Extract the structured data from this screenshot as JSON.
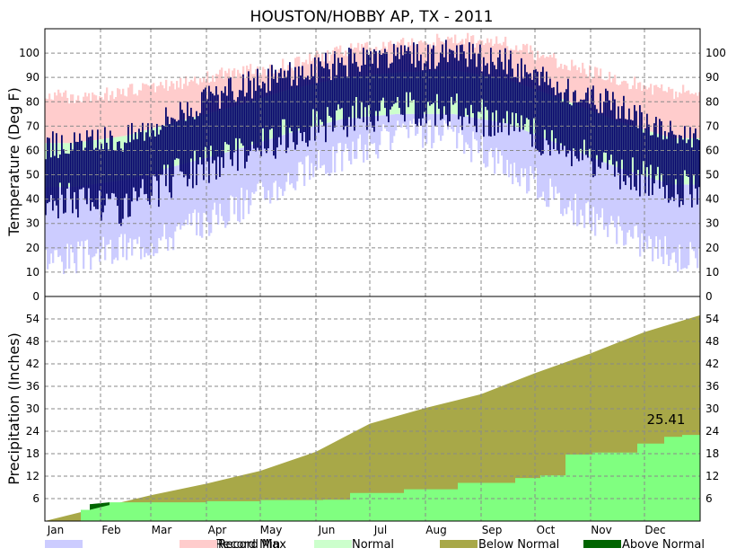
{
  "chart_data": [
    {
      "type": "bar",
      "title": "HOUSTON/HOBBY AP, TX - 2011",
      "ylabel": "Temperature (Deg F)",
      "ylim": [
        0,
        110
      ],
      "yticks": [
        0,
        10,
        20,
        30,
        40,
        50,
        60,
        70,
        80,
        90,
        100
      ],
      "months": [
        "Jan",
        "Feb",
        "Mar",
        "Apr",
        "May",
        "Jun",
        "Jul",
        "Aug",
        "Sep",
        "Oct",
        "Nov",
        "Dec"
      ],
      "legend": [
        {
          "label": "Record Min",
          "color": "#ccccff"
        },
        {
          "label": "Record Max",
          "color": "#ffcccc"
        },
        {
          "label": "Normal",
          "color": "#ccffcc"
        }
      ],
      "series": [
        {
          "name": "Record Max",
          "color": "#ffcccc",
          "monthly_values": [
            82,
            84,
            88,
            92,
            95,
            101,
            103,
            106,
            104,
            96,
            89,
            84
          ]
        },
        {
          "name": "Normal",
          "monthly_low": [
            45,
            48,
            54,
            60,
            67,
            73,
            75,
            75,
            71,
            62,
            53,
            46
          ],
          "monthly_high": [
            63,
            66,
            72,
            78,
            85,
            90,
            92,
            93,
            89,
            81,
            72,
            65
          ],
          "color": "#ccffcc"
        },
        {
          "name": "Record Min",
          "color": "#ccccff",
          "monthly_values": [
            16,
            20,
            26,
            36,
            48,
            58,
            66,
            66,
            54,
            38,
            27,
            17
          ]
        },
        {
          "name": "Observed",
          "color": "#0a0a6e",
          "monthly_low": [
            40,
            36,
            50,
            58,
            66,
            73,
            77,
            77,
            70,
            60,
            52,
            44
          ],
          "monthly_high": [
            62,
            65,
            76,
            85,
            91,
            96,
            98,
            100,
            96,
            85,
            78,
            67
          ]
        }
      ]
    },
    {
      "type": "area",
      "ylabel": "Precipitation (Inches)",
      "ylim": [
        0,
        60
      ],
      "yticks": [
        6,
        12,
        18,
        24,
        30,
        36,
        42,
        48,
        54
      ],
      "months": [
        "Jan",
        "Feb",
        "Mar",
        "Apr",
        "May",
        "Jun",
        "Jul",
        "Aug",
        "Sep",
        "Oct",
        "Nov",
        "Dec"
      ],
      "annotation": "25.41",
      "legend": [
        {
          "label": "Below Normal",
          "color": "#a8a848"
        },
        {
          "label": "Above Normal",
          "color": "#006400"
        }
      ],
      "series": [
        {
          "name": "Normal",
          "color": "#a8a848",
          "x": [
            0,
            31,
            59,
            90,
            120,
            151,
            181,
            212,
            243,
            273,
            304,
            334,
            365
          ],
          "values": [
            0,
            3.7,
            6.9,
            10.0,
            13.4,
            18.5,
            26.0,
            30.2,
            33.9,
            39.5,
            44.8,
            50.5,
            55
          ]
        },
        {
          "name": "Observed",
          "color": "#80ff80",
          "x": [
            0,
            20,
            25,
            36,
            60,
            90,
            120,
            155,
            170,
            200,
            230,
            262,
            276,
            290,
            305,
            330,
            345,
            355,
            365
          ],
          "values": [
            0,
            3.0,
            4.5,
            5.0,
            5.0,
            5.3,
            5.6,
            5.7,
            7.5,
            8.5,
            10.2,
            11.5,
            12.2,
            17.8,
            18.3,
            20.7,
            22.5,
            23.0,
            25.41
          ]
        }
      ]
    }
  ],
  "legend_items": [
    {
      "label": "Record Min",
      "color": "#ccccff"
    },
    {
      "label": "Record Max",
      "color": "#ffcccc"
    },
    {
      "label": "Normal",
      "color": "#ccffcc"
    },
    {
      "label": "Below Normal",
      "color": "#a8a848"
    },
    {
      "label": "Above Normal",
      "color": "#006400"
    }
  ]
}
